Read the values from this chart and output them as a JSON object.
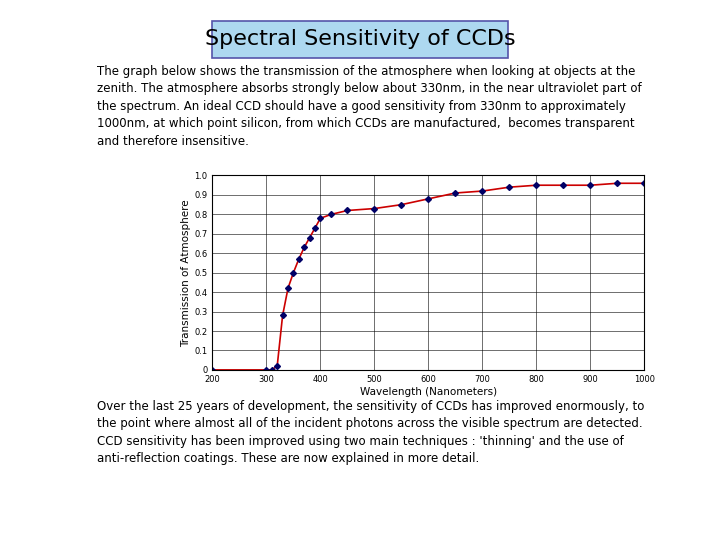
{
  "title": "Spectral Sensitivity of CCDs",
  "title_bg": "#add8f0",
  "title_border": "#5555aa",
  "top_text": "The graph below shows the transmission of the atmosphere when looking at objects at the\nzenith. The atmosphere absorbs strongly below about 330nm, in the near ultraviolet part of\nthe spectrum. An ideal CCD should have a good sensitivity from 330nm to approximately\n1000nm, at which point silicon, from which CCDs are manufactured,  becomes transparent\nand therefore insensitive.",
  "bottom_text": "Over the last 25 years of development, the sensitivity of CCDs has improved enormously, to\nthe point where almost all of the incident photons across the visible spectrum are detected.\nCCD sensitivity has been improved using two main techniques : 'thinning' and the use of\nanti-reflection coatings. These are now explained in more detail.",
  "xlabel": "Wavelength (Nanometers)",
  "ylabel": "Transmission of Atmosphere",
  "x_data": [
    200,
    300,
    310,
    320,
    330,
    340,
    350,
    360,
    370,
    380,
    390,
    400,
    420,
    450,
    500,
    550,
    600,
    650,
    700,
    750,
    800,
    850,
    900,
    950,
    1000
  ],
  "y_data": [
    0.0,
    0.0,
    0.0,
    0.02,
    0.28,
    0.42,
    0.5,
    0.57,
    0.63,
    0.68,
    0.73,
    0.78,
    0.8,
    0.82,
    0.83,
    0.85,
    0.88,
    0.91,
    0.92,
    0.94,
    0.95,
    0.95,
    0.95,
    0.96,
    0.96
  ],
  "line_color": "#cc0000",
  "marker_color": "#000066",
  "marker_style": "D",
  "marker_size": 3,
  "xlim": [
    200,
    1000
  ],
  "ylim": [
    0,
    1.0
  ],
  "xticks": [
    200,
    300,
    400,
    500,
    600,
    700,
    800,
    900,
    1000
  ],
  "yticks": [
    0,
    0.1,
    0.2,
    0.3,
    0.4,
    0.5,
    0.6,
    0.7,
    0.8,
    0.9,
    1.0
  ],
  "grid": true,
  "bg_color": "#ffffff",
  "font_family": "Times New Roman",
  "title_fontsize": 16,
  "text_fontsize": 8.5,
  "tick_fontsize": 6,
  "axis_label_fontsize": 7.5
}
